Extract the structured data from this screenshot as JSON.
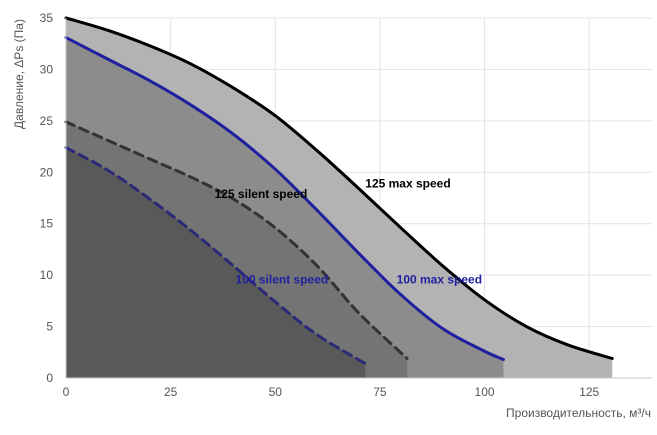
{
  "chart_data": {
    "type": "area",
    "title": "",
    "xlabel": "Производительность, м³/ч",
    "ylabel": "Давление, ΔPs (Па)",
    "xlim": [
      0,
      140
    ],
    "ylim": [
      0,
      35
    ],
    "xticks": [
      0,
      25,
      50,
      75,
      100,
      125
    ],
    "yticks": [
      0,
      5,
      10,
      15,
      20,
      25,
      30,
      35
    ],
    "grid": true,
    "series": [
      {
        "name": "125 max speed",
        "color": "#000000",
        "fill": "#b3b3b3",
        "dashed": false,
        "x": [
          0,
          10,
          20,
          30,
          40,
          50,
          60,
          70,
          80,
          90,
          100,
          110,
          120,
          130.5
        ],
        "y": [
          35,
          33.8,
          32.3,
          30.5,
          28.2,
          25.5,
          22.1,
          18.4,
          14.6,
          10.9,
          7.6,
          5.0,
          3.2,
          1.9
        ]
      },
      {
        "name": "100 max speed",
        "color": "#1f1fa0",
        "fill": "#8c8c8c",
        "dashed": false,
        "x": [
          0,
          10,
          20,
          30,
          40,
          50,
          60,
          70,
          80,
          90,
          100,
          104.5
        ],
        "y": [
          33.1,
          31.0,
          28.9,
          26.5,
          23.7,
          20.3,
          16.3,
          12.1,
          8.1,
          4.8,
          2.6,
          1.8
        ]
      },
      {
        "name": "125 silent speed",
        "color": "#333333",
        "fill": "#747474",
        "dashed": true,
        "x": [
          0,
          10,
          20,
          30,
          40,
          50,
          60,
          70,
          81.5
        ],
        "y": [
          24.9,
          23.1,
          21.3,
          19.5,
          17.4,
          14.6,
          10.9,
          6.3,
          1.9
        ]
      },
      {
        "name": "100 silent speed",
        "color": "#2a2a78",
        "fill": "#595959",
        "dashed": true,
        "x": [
          0,
          10,
          20,
          30,
          40,
          50,
          60,
          71.5
        ],
        "y": [
          22.4,
          20.2,
          17.4,
          14.3,
          10.9,
          7.4,
          4.2,
          1.4
        ]
      }
    ],
    "annotations": [
      {
        "text": "125 max speed",
        "x": 71.5,
        "y": 18.5,
        "color": "#000000"
      },
      {
        "text": "100 max speed",
        "x": 79,
        "y": 9.2,
        "color": "#1f1fa0"
      },
      {
        "text": "125 silent speed",
        "x": 35.5,
        "y": 17.5,
        "color": "#000000"
      },
      {
        "text": "100 silent speed",
        "x": 40.5,
        "y": 9.2,
        "color": "#1f1fa0"
      }
    ]
  }
}
